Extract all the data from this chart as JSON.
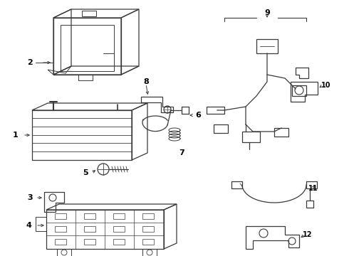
{
  "bg_color": "#ffffff",
  "line_color": "#3a3a3a",
  "label_color": "#000000",
  "fig_width": 4.9,
  "fig_height": 3.6,
  "dpi": 100
}
